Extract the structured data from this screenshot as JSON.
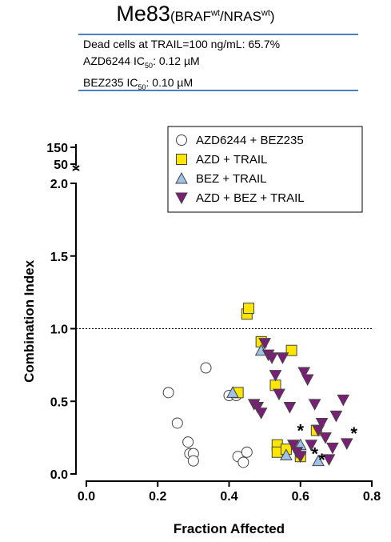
{
  "header": {
    "cell_line": "Me83",
    "genotype_open": "(BRAF",
    "genotype_sup1": "wt",
    "genotype_mid": "/NRAS",
    "genotype_sup2": "wt",
    "genotype_close": ")"
  },
  "info": {
    "line1": "Dead cells at TRAIL=100 ng/mL: 65.7%",
    "line2_prefix": "AZD6244  IC",
    "line2_sub": "50",
    "line2_value": ": 0.12 µM",
    "line3_prefix": "BEZ235  IC",
    "line3_sub": "50",
    "line3_value": ": 0.10 µM"
  },
  "chart_data": {
    "type": "scatter",
    "xlabel": "Fraction Affected",
    "ylabel": "Combination Index",
    "xlim": [
      -0.1,
      0.8
    ],
    "ylim": [
      0,
      2.0
    ],
    "y_break_upper_ticks": [
      "150",
      "50"
    ],
    "xticks": [
      "0.0",
      "0.2",
      "0.4",
      "0.6",
      "0.8"
    ],
    "yticks": [
      "0.0",
      "0.5",
      "1.0",
      "1.5",
      "2.0"
    ],
    "reference_line_y": 1.0,
    "legend_position": "top-right",
    "annotation_symbol": "*",
    "annotations": [
      {
        "x": 0.6,
        "y": 0.3
      },
      {
        "x": 0.64,
        "y": 0.14
      },
      {
        "x": 0.66,
        "y": 0.1
      },
      {
        "x": 0.75,
        "y": 0.28
      }
    ],
    "series": [
      {
        "name": "AZD6244 + BEZ235",
        "marker": "circle",
        "color": "#ffffff",
        "points": [
          [
            0.23,
            0.56
          ],
          [
            0.255,
            0.35
          ],
          [
            0.285,
            0.22
          ],
          [
            0.29,
            0.14
          ],
          [
            0.3,
            0.14
          ],
          [
            0.3,
            0.09
          ],
          [
            0.335,
            0.73
          ],
          [
            0.4,
            0.54
          ],
          [
            0.42,
            0.54
          ],
          [
            0.425,
            0.12
          ],
          [
            0.44,
            0.08
          ],
          [
            0.45,
            0.15
          ]
        ]
      },
      {
        "name": "AZD + TRAIL",
        "marker": "square",
        "color": "#ffe600",
        "points": [
          [
            0.425,
            0.56
          ],
          [
            0.45,
            1.1
          ],
          [
            0.455,
            1.14
          ],
          [
            0.49,
            0.91
          ],
          [
            0.53,
            0.61
          ],
          [
            0.535,
            0.2
          ],
          [
            0.535,
            0.15
          ],
          [
            0.56,
            0.17
          ],
          [
            0.575,
            0.85
          ],
          [
            0.6,
            0.12
          ],
          [
            0.645,
            0.3
          ]
        ]
      },
      {
        "name": "BEZ + TRAIL",
        "marker": "triangle-up",
        "color": "#9fc3e6",
        "points": [
          [
            0.41,
            0.56
          ],
          [
            0.49,
            0.85
          ],
          [
            0.56,
            0.13
          ],
          [
            0.6,
            0.2
          ],
          [
            0.65,
            0.09
          ]
        ]
      },
      {
        "name": "AZD + BEZ + TRAIL",
        "marker": "triangle-down",
        "color": "#7a1e78",
        "points": [
          [
            0.47,
            0.48
          ],
          [
            0.48,
            0.46
          ],
          [
            0.49,
            0.42
          ],
          [
            0.5,
            0.9
          ],
          [
            0.51,
            0.82
          ],
          [
            0.52,
            0.8
          ],
          [
            0.53,
            0.68
          ],
          [
            0.54,
            0.55
          ],
          [
            0.55,
            0.8
          ],
          [
            0.57,
            0.46
          ],
          [
            0.58,
            0.2
          ],
          [
            0.59,
            0.15
          ],
          [
            0.6,
            0.12
          ],
          [
            0.61,
            0.7
          ],
          [
            0.62,
            0.65
          ],
          [
            0.63,
            0.2
          ],
          [
            0.64,
            0.48
          ],
          [
            0.65,
            0.3
          ],
          [
            0.66,
            0.35
          ],
          [
            0.67,
            0.25
          ],
          [
            0.68,
            0.1
          ],
          [
            0.69,
            0.18
          ],
          [
            0.7,
            0.4
          ],
          [
            0.72,
            0.51
          ],
          [
            0.73,
            0.21
          ]
        ]
      }
    ]
  }
}
